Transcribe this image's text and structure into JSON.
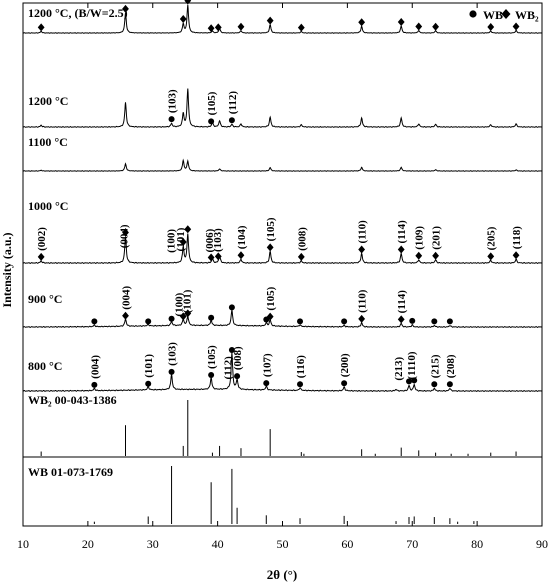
{
  "chart_data": {
    "type": "line",
    "xlabel": "2θ (°)",
    "ylabel": "Intensity (a.u.)",
    "xlim": [
      10,
      90
    ],
    "xticks": [
      "10",
      "20",
      "30",
      "40",
      "50",
      "60",
      "70",
      "80",
      "90"
    ],
    "legend": {
      "position": "top-right",
      "items": [
        {
          "label": "WB",
          "marker": "circle"
        },
        {
          "label": "WB₂",
          "marker": "diamond"
        }
      ]
    },
    "traces": [
      {
        "label": "1200 °C, (B/W=2.5)",
        "peaks": [
          [
            12.8,
            0.06
          ],
          [
            25.8,
            0.72
          ],
          [
            34.7,
            0.32
          ],
          [
            35.4,
            1.0
          ],
          [
            39.2,
            0.07
          ],
          [
            40.3,
            0.17
          ],
          [
            43.6,
            0.08
          ],
          [
            48.1,
            0.3
          ],
          [
            52.9,
            0.05
          ],
          [
            62.2,
            0.24
          ],
          [
            68.3,
            0.25
          ],
          [
            71.0,
            0.09
          ],
          [
            73.6,
            0.08
          ],
          [
            82.1,
            0.07
          ],
          [
            86.0,
            0.09
          ]
        ],
        "markers": [
          {
            "x": 12.8,
            "m": "d"
          },
          {
            "x": 25.8,
            "m": "d"
          },
          {
            "x": 34.7,
            "m": "d"
          },
          {
            "x": 35.4,
            "m": "d"
          },
          {
            "x": 39.0,
            "m": "d"
          },
          {
            "x": 40.1,
            "m": "d"
          },
          {
            "x": 43.6,
            "m": "d"
          },
          {
            "x": 48.1,
            "m": "d"
          },
          {
            "x": 52.9,
            "m": "d"
          },
          {
            "x": 62.2,
            "m": "d"
          },
          {
            "x": 68.3,
            "m": "d"
          },
          {
            "x": 71.0,
            "m": "d"
          },
          {
            "x": 73.6,
            "m": "d"
          },
          {
            "x": 82.1,
            "m": "d"
          },
          {
            "x": 86.0,
            "m": "d"
          }
        ],
        "labels": []
      },
      {
        "label": "1200 °C",
        "peaks": [
          [
            12.8,
            0.04
          ],
          [
            25.8,
            0.55
          ],
          [
            32.9,
            0.08
          ],
          [
            34.7,
            0.3
          ],
          [
            35.4,
            0.85
          ],
          [
            39.2,
            0.1
          ],
          [
            40.3,
            0.14
          ],
          [
            42.2,
            0.06
          ],
          [
            43.6,
            0.07
          ],
          [
            48.1,
            0.22
          ],
          [
            52.9,
            0.05
          ],
          [
            62.2,
            0.2
          ],
          [
            68.3,
            0.2
          ],
          [
            71.0,
            0.07
          ],
          [
            73.6,
            0.06
          ],
          [
            82.1,
            0.05
          ],
          [
            86.0,
            0.07
          ]
        ],
        "markers": [
          {
            "x": 32.9,
            "m": "c"
          },
          {
            "x": 39.0,
            "m": "c"
          },
          {
            "x": 42.2,
            "m": "c"
          }
        ],
        "labels": [
          {
            "x": 32.9,
            "t": "(103)"
          },
          {
            "x": 39.0,
            "t": "(105)"
          },
          {
            "x": 42.2,
            "t": "(112)"
          }
        ]
      },
      {
        "label": "1100 °C",
        "peaks": [
          [
            12.8,
            0.03
          ],
          [
            25.8,
            0.28
          ],
          [
            34.7,
            0.4
          ],
          [
            35.4,
            0.38
          ],
          [
            40.3,
            0.08
          ],
          [
            48.1,
            0.13
          ],
          [
            62.2,
            0.14
          ],
          [
            68.3,
            0.14
          ],
          [
            73.6,
            0.05
          ],
          [
            86.0,
            0.04
          ]
        ],
        "markers": [],
        "labels": []
      },
      {
        "label": "1000 °C",
        "peaks": [
          [
            12.8,
            0.04
          ],
          [
            25.8,
            0.5
          ],
          [
            34.7,
            0.3
          ],
          [
            35.4,
            0.55
          ],
          [
            39.2,
            0.08
          ],
          [
            40.3,
            0.14
          ],
          [
            43.6,
            0.07
          ],
          [
            48.1,
            0.22
          ],
          [
            52.9,
            0.04
          ],
          [
            62.2,
            0.18
          ],
          [
            68.3,
            0.18
          ],
          [
            71.0,
            0.06
          ],
          [
            73.6,
            0.06
          ],
          [
            82.1,
            0.05
          ],
          [
            86.0,
            0.07
          ]
        ],
        "markers": [
          {
            "x": 12.8,
            "m": "d"
          },
          {
            "x": 25.8,
            "m": "d"
          },
          {
            "x": 34.7,
            "m": "d"
          },
          {
            "x": 35.4,
            "m": "d"
          },
          {
            "x": 39.0,
            "m": "d"
          },
          {
            "x": 40.1,
            "m": "d"
          },
          {
            "x": 43.6,
            "m": "d"
          },
          {
            "x": 48.1,
            "m": "d"
          },
          {
            "x": 52.9,
            "m": "d"
          },
          {
            "x": 62.2,
            "m": "d"
          },
          {
            "x": 68.3,
            "m": "d"
          },
          {
            "x": 71.0,
            "m": "d"
          },
          {
            "x": 73.6,
            "m": "d"
          },
          {
            "x": 82.1,
            "m": "d"
          },
          {
            "x": 86.0,
            "m": "d"
          }
        ],
        "labels": [
          {
            "x": 12.8,
            "t": "(002)"
          },
          {
            "x": 25.5,
            "t": "(004)"
          },
          {
            "x": 32.7,
            "t": "(100)"
          },
          {
            "x": 34.2,
            "t": "(101)"
          },
          {
            "x": 38.7,
            "t": "(006)"
          },
          {
            "x": 39.9,
            "t": "(103)"
          },
          {
            "x": 43.6,
            "t": "(104)"
          },
          {
            "x": 48.1,
            "t": "(105)"
          },
          {
            "x": 52.9,
            "t": "(008)"
          },
          {
            "x": 62.2,
            "t": "(110)"
          },
          {
            "x": 68.3,
            "t": "(114)"
          },
          {
            "x": 71.0,
            "t": "(109)"
          },
          {
            "x": 73.6,
            "t": "(201)"
          },
          {
            "x": 82.1,
            "t": "(205)"
          },
          {
            "x": 86.0,
            "t": "(118)"
          }
        ]
      },
      {
        "label": "900 °C",
        "peaks": [
          [
            21.0,
            0.03
          ],
          [
            25.8,
            0.14
          ],
          [
            29.3,
            0.03
          ],
          [
            32.9,
            0.08
          ],
          [
            34.7,
            0.12
          ],
          [
            35.4,
            0.18
          ],
          [
            39.0,
            0.1
          ],
          [
            42.2,
            0.3
          ],
          [
            47.5,
            0.06
          ],
          [
            48.1,
            0.12
          ],
          [
            52.7,
            0.03
          ],
          [
            59.5,
            0.03
          ],
          [
            62.2,
            0.08
          ],
          [
            68.3,
            0.07
          ],
          [
            70.0,
            0.04
          ],
          [
            73.4,
            0.03
          ],
          [
            75.8,
            0.03
          ]
        ],
        "markers": [
          {
            "x": 21.0,
            "m": "c"
          },
          {
            "x": 25.8,
            "m": "d"
          },
          {
            "x": 29.3,
            "m": "c"
          },
          {
            "x": 32.9,
            "m": "c"
          },
          {
            "x": 34.7,
            "m": "d"
          },
          {
            "x": 35.4,
            "m": "d"
          },
          {
            "x": 39.0,
            "m": "c"
          },
          {
            "x": 42.2,
            "m": "c"
          },
          {
            "x": 47.5,
            "m": "c"
          },
          {
            "x": 48.1,
            "m": "d"
          },
          {
            "x": 52.7,
            "m": "c"
          },
          {
            "x": 59.5,
            "m": "c"
          },
          {
            "x": 62.2,
            "m": "d"
          },
          {
            "x": 68.3,
            "m": "d"
          },
          {
            "x": 70.0,
            "m": "c"
          },
          {
            "x": 73.4,
            "m": "c"
          },
          {
            "x": 75.8,
            "m": "c"
          }
        ],
        "labels": [
          {
            "x": 25.8,
            "t": "(004)"
          },
          {
            "x": 34.0,
            "t": "(100)"
          },
          {
            "x": 35.2,
            "t": "(101)"
          },
          {
            "x": 48.1,
            "t": "(105)"
          },
          {
            "x": 62.2,
            "t": "(110)"
          },
          {
            "x": 68.3,
            "t": "(114)"
          }
        ]
      },
      {
        "label": "800 °C",
        "peaks": [
          [
            21.0,
            0.04
          ],
          [
            29.3,
            0.06
          ],
          [
            32.9,
            0.28
          ],
          [
            39.0,
            0.22
          ],
          [
            42.2,
            0.68
          ],
          [
            43.0,
            0.18
          ],
          [
            47.5,
            0.07
          ],
          [
            52.7,
            0.05
          ],
          [
            59.5,
            0.07
          ],
          [
            67.5,
            0.03
          ],
          [
            69.5,
            0.1
          ],
          [
            70.3,
            0.12
          ],
          [
            73.4,
            0.05
          ],
          [
            75.8,
            0.05
          ]
        ],
        "markers": [
          {
            "x": 21.0,
            "m": "c"
          },
          {
            "x": 29.3,
            "m": "c"
          },
          {
            "x": 32.9,
            "m": "c"
          },
          {
            "x": 39.0,
            "m": "c"
          },
          {
            "x": 42.2,
            "m": "c"
          },
          {
            "x": 43.0,
            "m": "c"
          },
          {
            "x": 47.5,
            "m": "c"
          },
          {
            "x": 52.7,
            "m": "c"
          },
          {
            "x": 59.5,
            "m": "c"
          },
          {
            "x": 69.5,
            "m": "c"
          },
          {
            "x": 70.3,
            "m": "c"
          },
          {
            "x": 73.4,
            "m": "c"
          },
          {
            "x": 75.8,
            "m": "c"
          }
        ],
        "labels": [
          {
            "x": 21.0,
            "t": "(004)"
          },
          {
            "x": 29.3,
            "t": "(101)"
          },
          {
            "x": 32.9,
            "t": "(103)"
          },
          {
            "x": 39.0,
            "t": "(105)"
          },
          {
            "x": 41.5,
            "t": "(112)"
          },
          {
            "x": 43.0,
            "t": "(008)"
          },
          {
            "x": 47.5,
            "t": "(107)"
          },
          {
            "x": 52.7,
            "t": "(116)"
          },
          {
            "x": 59.5,
            "t": "(200)"
          },
          {
            "x": 67.8,
            "t": "(213)"
          },
          {
            "x": 69.8,
            "t": "(1110)"
          },
          {
            "x": 73.4,
            "t": "(215)"
          },
          {
            "x": 75.8,
            "t": "(208)"
          }
        ]
      }
    ],
    "references": [
      {
        "label": "WB₂ 00-043-1386",
        "lines": [
          [
            12.8,
            0.08
          ],
          [
            25.8,
            0.55
          ],
          [
            34.7,
            0.18
          ],
          [
            35.4,
            1.0
          ],
          [
            39.2,
            0.06
          ],
          [
            40.3,
            0.18
          ],
          [
            43.6,
            0.14
          ],
          [
            48.1,
            0.48
          ],
          [
            52.9,
            0.07
          ],
          [
            53.3,
            0.04
          ],
          [
            62.2,
            0.12
          ],
          [
            64.3,
            0.04
          ],
          [
            68.3,
            0.15
          ],
          [
            71.0,
            0.1
          ],
          [
            73.6,
            0.06
          ],
          [
            76.0,
            0.04
          ],
          [
            78.6,
            0.04
          ],
          [
            82.1,
            0.06
          ],
          [
            86.0,
            0.08
          ]
        ]
      },
      {
        "label": "WB   01-073-1769",
        "lines": [
          [
            21.0,
            0.04
          ],
          [
            29.3,
            0.13
          ],
          [
            32.9,
            1.0
          ],
          [
            39.0,
            0.72
          ],
          [
            42.2,
            0.95
          ],
          [
            43.0,
            0.28
          ],
          [
            47.5,
            0.15
          ],
          [
            52.7,
            0.1
          ],
          [
            59.5,
            0.14
          ],
          [
            67.5,
            0.05
          ],
          [
            69.5,
            0.12
          ],
          [
            70.3,
            0.13
          ],
          [
            73.4,
            0.12
          ],
          [
            75.8,
            0.1
          ],
          [
            77.0,
            0.04
          ],
          [
            79.5,
            0.05
          ]
        ]
      }
    ]
  }
}
